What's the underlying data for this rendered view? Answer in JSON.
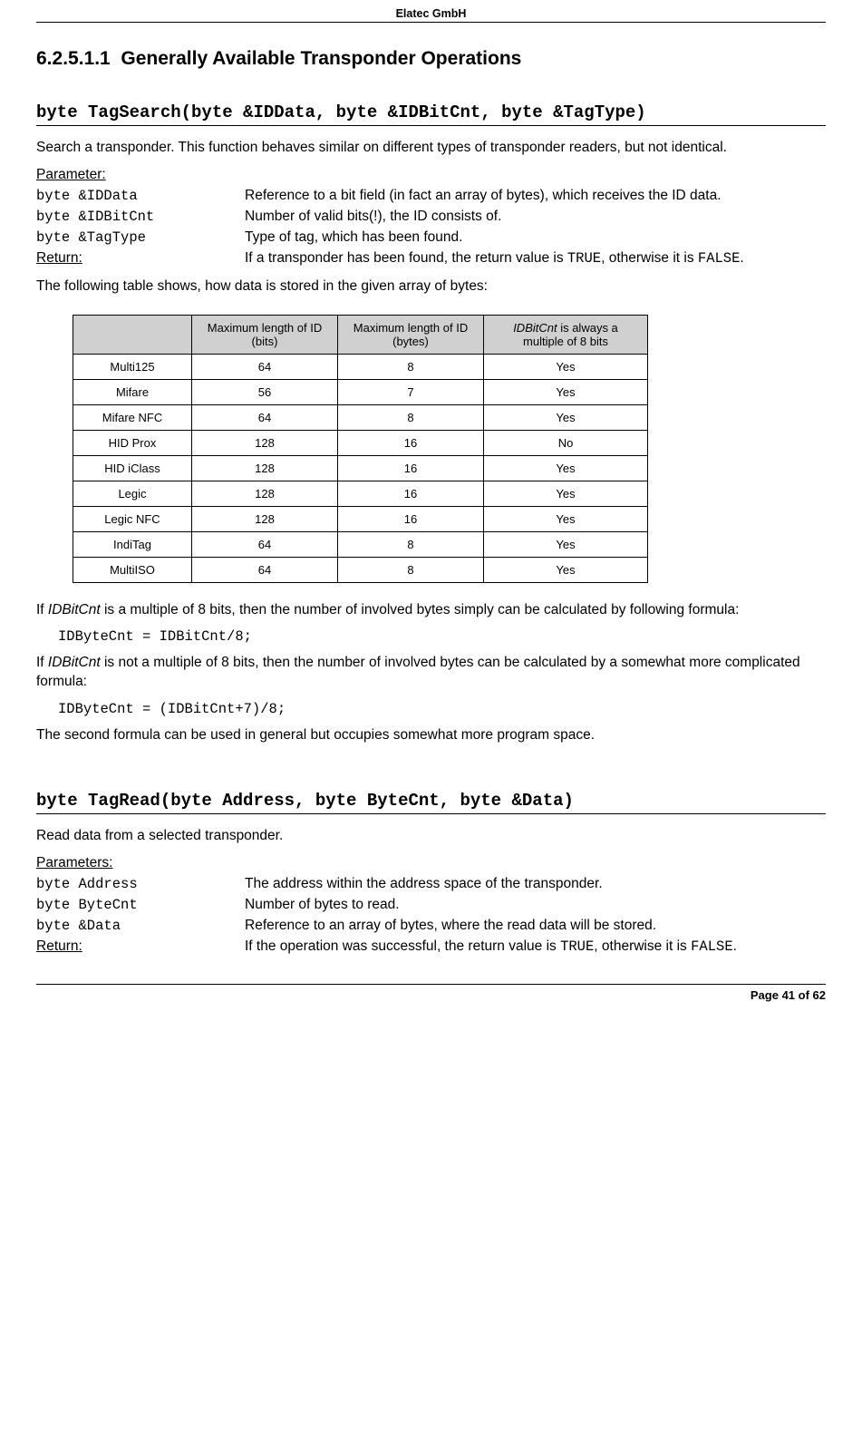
{
  "header": {
    "company": "Elatec GmbH"
  },
  "section": {
    "number": "6.2.5.1.1",
    "title": "Generally Available Transponder Operations"
  },
  "func1": {
    "signature": "byte TagSearch(byte &IDData, byte &IDBitCnt, byte &TagType)",
    "intro": "Search a transponder. This function behaves similar on different types of transponder readers, but not identical.",
    "param_label": "Parameter:",
    "params": {
      "p1_name": "byte &IDData",
      "p1_desc": "Reference to a bit field (in fact an array of bytes), which receives the ID data.",
      "p2_name": "byte &IDBitCnt",
      "p2_desc": "Number of valid bits(!), the ID consists of.",
      "p3_name": "byte &TagType",
      "p3_desc": "Type of tag, which has been found."
    },
    "return_label": "Return:",
    "return_pre": "If a transponder has been found, the return value is ",
    "return_true": "TRUE",
    "return_mid": ", otherwise it is ",
    "return_false": "FALSE",
    "return_post": ".",
    "table_intro": "The following table shows, how data is stored in the given array of bytes:"
  },
  "table": {
    "headers": {
      "h0": "",
      "h1": "Maximum length of ID (bits)",
      "h2": "Maximum length of ID (bytes)",
      "h3_a": "IDBitCnt",
      "h3_b": " is always a multiple of 8 bits"
    },
    "rows": [
      {
        "c0": "Multi125",
        "c1": "64",
        "c2": "8",
        "c3": "Yes"
      },
      {
        "c0": "Mifare",
        "c1": "56",
        "c2": "7",
        "c3": "Yes"
      },
      {
        "c0": "Mifare NFC",
        "c1": "64",
        "c2": "8",
        "c3": "Yes"
      },
      {
        "c0": "HID Prox",
        "c1": "128",
        "c2": "16",
        "c3": "No"
      },
      {
        "c0": "HID iClass",
        "c1": "128",
        "c2": "16",
        "c3": "Yes"
      },
      {
        "c0": "Legic",
        "c1": "128",
        "c2": "16",
        "c3": "Yes"
      },
      {
        "c0": "Legic NFC",
        "c1": "128",
        "c2": "16",
        "c3": "Yes"
      },
      {
        "c0": "IndiTag",
        "c1": "64",
        "c2": "8",
        "c3": "Yes"
      },
      {
        "c0": "MultiISO",
        "c1": "64",
        "c2": "8",
        "c3": "Yes"
      }
    ]
  },
  "formulas": {
    "p1_pre": "If ",
    "p1_it": "IDBitCnt",
    "p1_post": " is a multiple of 8 bits, then the number of involved bytes simply can be calculated by following formula:",
    "code1": "IDByteCnt = IDBitCnt/8;",
    "p2_pre": "If ",
    "p2_it": "IDBitCnt",
    "p2_post": " is not a multiple of 8 bits, then the number of involved bytes can be calculated by a somewhat more complicated formula:",
    "code2": "IDByteCnt = (IDBitCnt+7)/8;",
    "p3": "The second formula can be used in general but occupies somewhat more program space."
  },
  "func2": {
    "signature": "byte TagRead(byte Address, byte ByteCnt, byte &Data)",
    "intro": "Read data from a selected transponder.",
    "param_label": "Parameters:",
    "params": {
      "p1_name": "byte Address",
      "p1_desc": "The address within the address space of the transponder.",
      "p2_name": "byte ByteCnt",
      "p2_desc": "Number of bytes to read.",
      "p3_name": "byte &Data",
      "p3_desc": "Reference to an array of bytes, where the read data will be stored."
    },
    "return_label": "Return:",
    "return_pre": "If the operation was successful, the return value is ",
    "return_true": "TRUE",
    "return_mid": ", otherwise it is ",
    "return_false": "FALSE",
    "return_post": "."
  },
  "footer": {
    "text": "Page 41 of 62"
  }
}
